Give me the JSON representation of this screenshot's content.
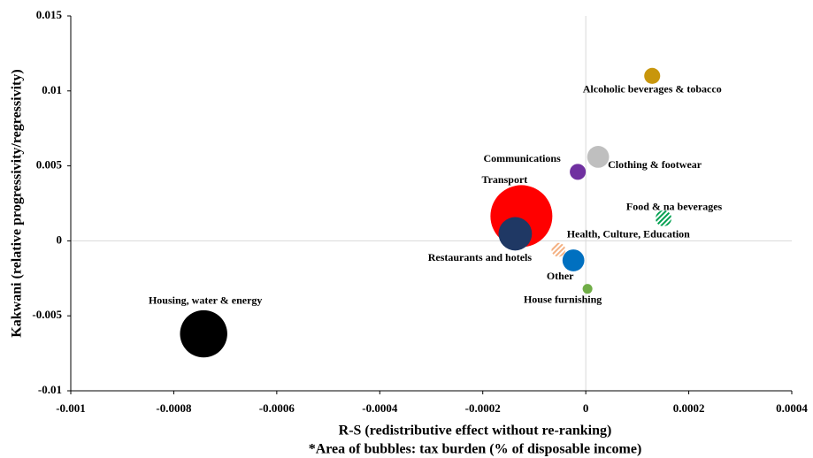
{
  "chart_data": {
    "type": "bubble",
    "x_label": "R-S  (redistributive effect without re-ranking)",
    "note": "*Area of bubbles: tax burden (% of disposable income)",
    "y_label": "Kakwani  (relative progressivity/regressivity)",
    "xlim": [
      -0.001,
      0.0004
    ],
    "xticks": [
      -0.001,
      -0.0008,
      -0.0006,
      -0.0004,
      -0.0002,
      0,
      0.0002,
      0.0004
    ],
    "ylim": [
      -0.01,
      0.015
    ],
    "yticks": [
      -0.01,
      -0.005,
      0,
      0.005,
      0.01,
      0.015
    ],
    "zero_lines": true,
    "series": [
      {
        "name": "Alcoholic beverages & tobacco",
        "color": "#c8960c",
        "x": [
          0.000129
        ],
        "values": [
          0.011
        ],
        "sizes": [
          0.8
        ]
      },
      {
        "name": "Clothing & footwear",
        "color": "#bfbfbf",
        "x": [
          2.4e-05
        ],
        "values": [
          0.0056
        ],
        "sizes": [
          1.5
        ]
      },
      {
        "name": "Communications",
        "color": "#7030a0",
        "x": [
          -1.55e-05
        ],
        "values": [
          0.0046
        ],
        "sizes": [
          0.8
        ]
      },
      {
        "name": "Transport",
        "color": "#ff0000",
        "x": [
          -0.000125
        ],
        "values": [
          0.00165
        ],
        "sizes": [
          12
        ]
      },
      {
        "name": "Restaurants and hotels",
        "color": "#1f3864",
        "x": [
          -0.000137
        ],
        "values": [
          0.00047
        ],
        "sizes": [
          3.5
        ]
      },
      {
        "name": "Food & na beverages",
        "color": "#00a050",
        "hatch": true,
        "x": [
          0.000151
        ],
        "values": [
          0.0015
        ],
        "sizes": [
          0.8
        ]
      },
      {
        "name": "Health, Culture, Education",
        "color": "#f4b183",
        "hatch": true,
        "x": [
          -5.3e-05
        ],
        "values": [
          -0.0006
        ],
        "sizes": [
          0.6
        ]
      },
      {
        "name": "Other",
        "color": "#0070c0",
        "x": [
          -2.4e-05
        ],
        "values": [
          -0.0013
        ],
        "sizes": [
          1.5
        ]
      },
      {
        "name": "House furnishing",
        "color": "#70ad47",
        "x": [
          3.4e-06
        ],
        "values": [
          -0.0032
        ],
        "sizes": [
          0.3
        ]
      },
      {
        "name": "Housing, water & energy",
        "color": "#000000",
        "x": [
          -0.000742
        ],
        "values": [
          -0.0062
        ],
        "sizes": [
          7
        ]
      }
    ]
  }
}
